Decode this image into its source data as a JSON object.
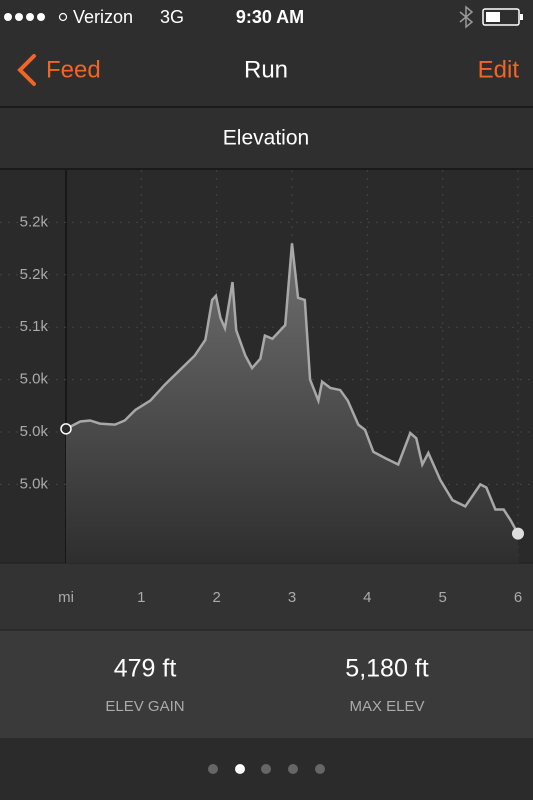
{
  "status_bar": {
    "carrier": "Verizon",
    "network": "3G",
    "time": "9:30 AM"
  },
  "nav": {
    "back": "Feed",
    "title": "Run",
    "action": "Edit"
  },
  "chart_data": {
    "type": "area",
    "title": "Elevation",
    "x": [
      0,
      0.19,
      0.32,
      0.45,
      0.65,
      0.78,
      0.92,
      1.12,
      1.31,
      1.51,
      1.71,
      1.85,
      1.94,
      1.99,
      2.05,
      2.11,
      2.21,
      2.26,
      2.38,
      2.47,
      2.58,
      2.64,
      2.74,
      2.91,
      3.0,
      3.08,
      3.17,
      3.24,
      3.35,
      3.4,
      3.51,
      3.64,
      3.74,
      3.88,
      3.97,
      4.08,
      4.24,
      4.41,
      4.57,
      4.65,
      4.73,
      4.81,
      4.97,
      5.13,
      5.3,
      5.5,
      5.58,
      5.7,
      5.81,
      5.9,
      6.0
    ],
    "values": [
      5003,
      5010,
      5011,
      5008,
      5007,
      5011,
      5021,
      5030,
      5045,
      5059,
      5073,
      5088,
      5126,
      5130,
      5109,
      5099,
      5143,
      5097,
      5073,
      5061,
      5070,
      5092,
      5089,
      5102,
      5180,
      5128,
      5126,
      5050,
      5030,
      5048,
      5042,
      5040,
      5030,
      5007,
      5002,
      4981,
      4975,
      4969,
      4999,
      4994,
      4969,
      4980,
      4954,
      4935,
      4929,
      4950,
      4947,
      4926,
      4926,
      4916,
      4903
    ],
    "xlim": [
      0,
      6
    ],
    "xticks": [
      {
        "value": 0,
        "label": "mi"
      },
      1,
      2,
      3,
      4,
      5,
      6
    ],
    "ylim": [
      4875,
      5250
    ],
    "yticks": [
      {
        "value": 5200,
        "label": "5.2k"
      },
      {
        "value": 5150,
        "label": "5.2k"
      },
      {
        "value": 5100,
        "label": "5.1k"
      },
      {
        "value": 5050,
        "label": "5.0k"
      },
      {
        "value": 5000,
        "label": "5.0k"
      },
      {
        "value": 4950,
        "label": "5.0k"
      }
    ],
    "grid": true,
    "color": "#a8a8a8"
  },
  "stats": [
    {
      "value": "479 ft",
      "label": "ELEV GAIN"
    },
    {
      "value": "5,180 ft",
      "label": "MAX ELEV"
    }
  ]
}
